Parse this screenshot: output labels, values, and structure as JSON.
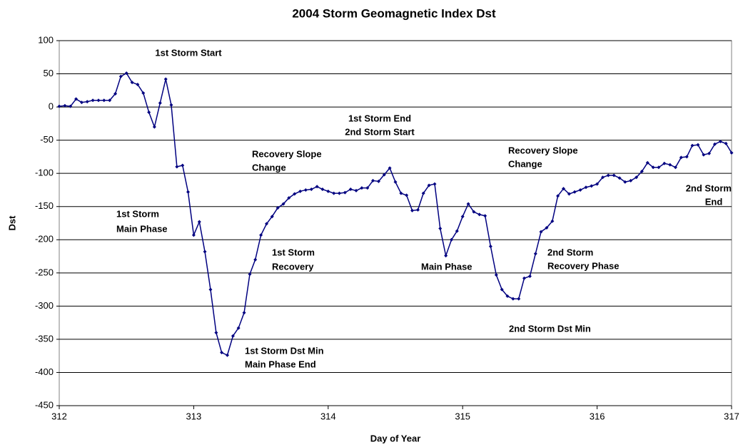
{
  "chart_data": {
    "type": "line",
    "title": "2004 Storm Geomagnetic Index Dst",
    "x_label": "Day of Year",
    "y_label": "Dst",
    "x": [
      312,
      312.042,
      312.083,
      312.125,
      312.167,
      312.208,
      312.25,
      312.292,
      312.333,
      312.375,
      312.417,
      312.458,
      312.5,
      312.542,
      312.583,
      312.625,
      312.667,
      312.708,
      312.75,
      312.792,
      312.833,
      312.875,
      312.917,
      312.958,
      313,
      313.042,
      313.083,
      313.125,
      313.167,
      313.208,
      313.25,
      313.292,
      313.333,
      313.375,
      313.417,
      313.458,
      313.5,
      313.542,
      313.583,
      313.625,
      313.667,
      313.708,
      313.75,
      313.792,
      313.833,
      313.875,
      313.917,
      313.958,
      314,
      314.042,
      314.083,
      314.125,
      314.167,
      314.208,
      314.25,
      314.292,
      314.333,
      314.375,
      314.417,
      314.458,
      314.5,
      314.542,
      314.583,
      314.625,
      314.667,
      314.708,
      314.75,
      314.792,
      314.833,
      314.875,
      314.917,
      314.958,
      315,
      315.042,
      315.083,
      315.125,
      315.167,
      315.208,
      315.25,
      315.292,
      315.333,
      315.375,
      315.417,
      315.458,
      315.5,
      315.542,
      315.583,
      315.625,
      315.667,
      315.708,
      315.75,
      315.792,
      315.833,
      315.875,
      315.917,
      315.958,
      316,
      316.042,
      316.083,
      316.125,
      316.167,
      316.208,
      316.25,
      316.292,
      316.333,
      316.375,
      316.417,
      316.458,
      316.5,
      316.542,
      316.583,
      316.625,
      316.667,
      316.708,
      316.75,
      316.792,
      316.833,
      316.875,
      316.917,
      316.958,
      317
    ],
    "series": [
      {
        "name": "Dst",
        "color": "#000080",
        "values": [
          1,
          2,
          1,
          12,
          7,
          8,
          10,
          10,
          10,
          10,
          20,
          46,
          51,
          37,
          34,
          21,
          -8,
          -30,
          6,
          42,
          3,
          -90,
          -88,
          -128,
          -193,
          -173,
          -218,
          -275,
          -340,
          -370,
          -374,
          -345,
          -333,
          -310,
          -252,
          -230,
          -193,
          -176,
          -165,
          -152,
          -146,
          -137,
          -131,
          -127,
          -125,
          -124,
          -120,
          -124,
          -127,
          -130,
          -130,
          -129,
          -124,
          -126,
          -122,
          -122,
          -111,
          -112,
          -102,
          -92,
          -113,
          -130,
          -133,
          -156,
          -155,
          -130,
          -118,
          -116,
          -183,
          -224,
          -200,
          -187,
          -165,
          -146,
          -158,
          -162,
          -164,
          -210,
          -253,
          -275,
          -285,
          -289,
          -289,
          -258,
          -255,
          -221,
          -188,
          -182,
          -172,
          -134,
          -123,
          -131,
          -128,
          -125,
          -121,
          -119,
          -116,
          -106,
          -103,
          -103,
          -107,
          -113,
          -111,
          -106,
          -97,
          -84,
          -91,
          -91,
          -85,
          -87,
          -91,
          -76,
          -75,
          -58,
          -57,
          -72,
          -70,
          -56,
          -52,
          -55,
          -69
        ]
      }
    ],
    "xlim": [
      312,
      317
    ],
    "xticks": [
      312,
      313,
      314,
      315,
      316,
      317
    ],
    "ylim": [
      -450,
      100
    ],
    "yticks": [
      -450,
      -400,
      -350,
      -300,
      -250,
      -200,
      -150,
      -100,
      -50,
      0,
      50,
      100
    ],
    "grid": true,
    "annotations": [
      [
        "1st Storm Start"
      ],
      [
        "1st Storm End",
        "2nd Storm Start"
      ],
      [
        "Recovery Slope",
        "Change"
      ],
      [
        "Recovery Slope",
        "Change"
      ],
      [
        "2nd Storm",
        "End"
      ],
      [
        "1st Storm",
        "Main Phase"
      ],
      [
        "1st Storm",
        "Recovery"
      ],
      [
        "Main Phase"
      ],
      [
        "2nd Storm",
        "Recovery Phase"
      ],
      [
        "2nd Storm Dst Min"
      ],
      [
        "1st Storm Dst Min",
        "Main Phase End"
      ]
    ]
  }
}
